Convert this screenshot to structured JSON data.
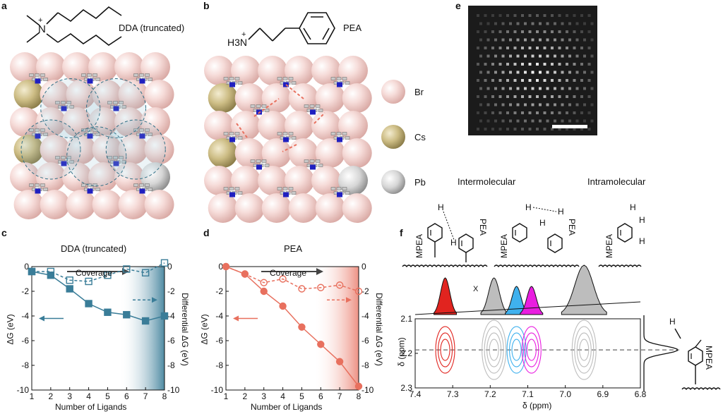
{
  "panel_labels": {
    "a": "a",
    "b": "b",
    "c": "c",
    "d": "d",
    "e": "e",
    "f": "f"
  },
  "panel_a": {
    "molecule_label": "DDA (truncated)",
    "charge": "+",
    "atom": "N"
  },
  "panel_b": {
    "molecule_label": "PEA",
    "charge": "+",
    "group": "H3N"
  },
  "legend_atoms": [
    {
      "name": "Br",
      "color": "#f4d2d0"
    },
    {
      "name": "Cs",
      "color": "#d9cc9a"
    },
    {
      "name": "Pb",
      "color": "#d2d2d2"
    }
  ],
  "colors": {
    "dda": "#3a7d98",
    "pea": "#e8705e",
    "red_peak": "#e1241f",
    "blue_peak": "#3fb1ee",
    "magenta_peak": "#e91ee0",
    "gray_peak": "#bdbdbd"
  },
  "chart_data": [
    {
      "type": "line",
      "title": "DDA (truncated)",
      "xlabel": "Number of Ligands",
      "ylabel": "ΔG (eV)",
      "y2label": "Differential ΔG (eV)",
      "coverage_label": "Coverage",
      "x": [
        1,
        2,
        3,
        4,
        5,
        6,
        7,
        8
      ],
      "xlim": [
        1,
        8
      ],
      "ylim": [
        -10,
        0
      ],
      "xticks": [
        "1",
        "2",
        "3",
        "4",
        "5",
        "6",
        "7",
        "8"
      ],
      "yticks": [
        "0",
        "-2",
        "-4",
        "-6",
        "-8",
        "-10"
      ],
      "series": [
        {
          "name": "ΔG",
          "values": [
            -0.4,
            -0.7,
            -1.8,
            -3.0,
            -3.7,
            -3.9,
            -4.4,
            -4.0
          ],
          "style": "solid-filled-square"
        },
        {
          "name": "Differential ΔG",
          "values": [
            -0.4,
            -0.4,
            -1.1,
            -1.2,
            -0.7,
            -0.2,
            -0.5,
            0.3
          ],
          "style": "dashed-open-square"
        }
      ]
    },
    {
      "type": "line",
      "title": "PEA",
      "xlabel": "Number of Ligands",
      "ylabel": "ΔG (eV)",
      "y2label": "Differential ΔG (eV)",
      "coverage_label": "Coverage",
      "x": [
        1,
        2,
        3,
        4,
        5,
        6,
        7,
        8
      ],
      "xlim": [
        1,
        8
      ],
      "ylim": [
        -10,
        0
      ],
      "xticks": [
        "1",
        "2",
        "3",
        "4",
        "5",
        "6",
        "7",
        "8"
      ],
      "yticks": [
        "0",
        "-2",
        "-4",
        "-6",
        "-8",
        "-10"
      ],
      "series": [
        {
          "name": "ΔG",
          "values": [
            0,
            -0.6,
            -2.0,
            -3.2,
            -4.9,
            -6.3,
            -7.7,
            -9.7
          ],
          "style": "solid-filled-circle"
        },
        {
          "name": "Differential ΔG",
          "values": [
            0,
            -0.6,
            -1.3,
            -1.0,
            -1.8,
            -1.7,
            -1.5,
            -2.0
          ],
          "style": "dashed-open-circle"
        }
      ]
    },
    {
      "type": "heatmap",
      "subtype": "2D NMR contour",
      "xlabel": "δ (ppm)",
      "ylabel": "δ (ppm)",
      "xlim": [
        7.4,
        6.8
      ],
      "ylim": [
        2.1,
        2.3
      ],
      "xticks": [
        "7.4",
        "7.3",
        "7.2",
        "7.1",
        "7.0",
        "6.9",
        "6.8"
      ],
      "yticks": [
        "2.1",
        "2.2",
        "2.3"
      ],
      "peaks": [
        {
          "shift": 7.32,
          "color": "red"
        },
        {
          "shift": 7.19,
          "color": "gray"
        },
        {
          "shift": 7.13,
          "color": "blue"
        },
        {
          "shift": 7.09,
          "color": "magenta"
        },
        {
          "shift": 6.95,
          "color": "gray"
        }
      ],
      "marker_x": "X"
    }
  ],
  "panel_f": {
    "intermolecular": "Intermolecular",
    "intramolecular": "Intramolecular",
    "mpea": "MPEA",
    "pea": "PEA",
    "h": "H"
  }
}
